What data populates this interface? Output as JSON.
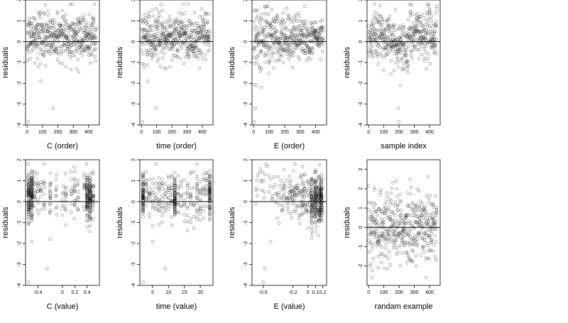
{
  "figure": {
    "background": "#ffffff",
    "point_color": "#000000"
  },
  "chart_data": [
    {
      "type": "scatter",
      "xlabel": "C (order)",
      "ylabel": "residuals",
      "xlim": [
        -10,
        470
      ],
      "ylim": [
        -4,
        2
      ],
      "xticks": [
        0,
        100,
        200,
        300,
        400
      ],
      "yticks": [
        -4,
        -3,
        -2,
        -1,
        0,
        1,
        2
      ],
      "hline": 0,
      "n_points": 450,
      "spread": "uniform spread across index, mostly between -1.5 and 1.5",
      "outliers": [
        {
          "x": 8,
          "y": -3.85
        },
        {
          "x": 170,
          "y": -3.2
        },
        {
          "x": 90,
          "y": -1.9
        }
      ]
    },
    {
      "type": "scatter",
      "xlabel": "time (order)",
      "ylabel": "residuals",
      "xlim": [
        -10,
        470
      ],
      "ylim": [
        -4,
        2
      ],
      "xticks": [
        0,
        100,
        200,
        300,
        400
      ],
      "yticks": [
        -4,
        -3,
        -2,
        -1,
        0,
        1,
        2
      ],
      "hline": 0,
      "n_points": 450,
      "spread": "uniform spread across index, mostly between -1.5 and 1.5",
      "outliers": [
        {
          "x": 8,
          "y": -3.85
        },
        {
          "x": 95,
          "y": -3.2
        },
        {
          "x": 40,
          "y": -1.9
        }
      ]
    },
    {
      "type": "scatter",
      "xlabel": "E (order)",
      "ylabel": "residuals",
      "xlim": [
        -10,
        470
      ],
      "ylim": [
        -4,
        2
      ],
      "xticks": [
        0,
        100,
        200,
        300,
        400
      ],
      "yticks": [
        -4,
        -3,
        -2,
        -1,
        0,
        1,
        2
      ],
      "hline": 0,
      "n_points": 450,
      "spread": "funnel: wide at low index (-2 to 1.7), narrowing toward high index",
      "outliers": [
        {
          "x": 5,
          "y": -3.85
        },
        {
          "x": 12,
          "y": -3.2
        },
        {
          "x": 20,
          "y": -2.1
        }
      ]
    },
    {
      "type": "scatter",
      "xlabel": "sample index",
      "ylabel": "residuals",
      "xlim": [
        -10,
        470
      ],
      "ylim": [
        -4,
        2
      ],
      "xticks": [
        0,
        100,
        200,
        300,
        400
      ],
      "yticks": [
        -4,
        -3,
        -2,
        -1,
        0,
        1,
        2
      ],
      "hline": 0,
      "n_points": 450,
      "spread": "mostly -1 to 1.5 with a dip to about -2 around index 150-250",
      "outliers": [
        {
          "x": 200,
          "y": -3.85
        },
        {
          "x": 195,
          "y": -3.2
        },
        {
          "x": 210,
          "y": -2.1
        }
      ]
    },
    {
      "type": "scatter",
      "xlabel": "C (value)",
      "ylabel": "residuals",
      "xlim": [
        -0.6,
        0.6
      ],
      "ylim": [
        -4,
        2
      ],
      "xticks": [
        -0.4,
        0.0,
        0.2,
        0.4
      ],
      "yticks": [
        -4,
        -3,
        -2,
        -1,
        0,
        1,
        2
      ],
      "hline": 0,
      "n_points": 450,
      "spread": "discrete vertical columns of points, densest near -0.55 and 0.45",
      "column_x": [
        -0.55,
        -0.5,
        -0.45,
        -0.4,
        -0.35,
        -0.3,
        -0.2,
        -0.1,
        0.0,
        0.05,
        0.15,
        0.2,
        0.25,
        0.35,
        0.4,
        0.45,
        0.5
      ],
      "outliers": [
        {
          "x": -0.55,
          "y": -3.85
        },
        {
          "x": -0.25,
          "y": -3.2
        },
        {
          "x": -0.5,
          "y": -1.9
        }
      ]
    },
    {
      "type": "scatter",
      "xlabel": "time (value)",
      "ylabel": "residuals",
      "xlim": [
        1,
        24
      ],
      "ylim": [
        -4,
        2
      ],
      "xticks": [
        5,
        10,
        15,
        20
      ],
      "yticks": [
        -4,
        -3,
        -2,
        -1,
        0,
        1,
        2
      ],
      "hline": 0,
      "n_points": 450,
      "spread": "integer-valued time columns, denser at 2, 12 and 23",
      "column_x": [
        2,
        3,
        4,
        5,
        6,
        7,
        8,
        9,
        10,
        11,
        12,
        13,
        14,
        15,
        16,
        17,
        18,
        19,
        20,
        21,
        22,
        23
      ],
      "outliers": [
        {
          "x": 2,
          "y": -3.85
        },
        {
          "x": 9,
          "y": -3.2
        },
        {
          "x": 5,
          "y": -1.9
        }
      ]
    },
    {
      "type": "scatter",
      "xlabel": "E (value)",
      "ylabel": "residuals",
      "xlim": [
        -0.75,
        0.25
      ],
      "ylim": [
        -4,
        2
      ],
      "xticks": [
        -0.6,
        -0.2,
        0.0,
        0.1,
        0.2
      ],
      "yticks": [
        -4,
        -3,
        -2,
        -1,
        0,
        1,
        2
      ],
      "hline": 0,
      "n_points": 450,
      "spread": "sparse at low E, dense columns at E 0.0 to 0.2 with a downward trend",
      "outliers": [
        {
          "x": -0.6,
          "y": -3.85
        },
        {
          "x": -0.58,
          "y": -3.2
        },
        {
          "x": -0.5,
          "y": -1.9
        }
      ]
    },
    {
      "type": "scatter",
      "xlabel": "randam example",
      "ylabel": "residuals",
      "xlim": [
        -10,
        470
      ],
      "ylim": [
        -3,
        3.5
      ],
      "xticks": [
        0,
        100,
        200,
        300,
        400
      ],
      "yticks": [
        -2,
        -1,
        0,
        1,
        2,
        3
      ],
      "hline": 0,
      "n_points": 450,
      "spread": "normal noise, roughly -2.5 to 3.2",
      "outliers": []
    }
  ]
}
